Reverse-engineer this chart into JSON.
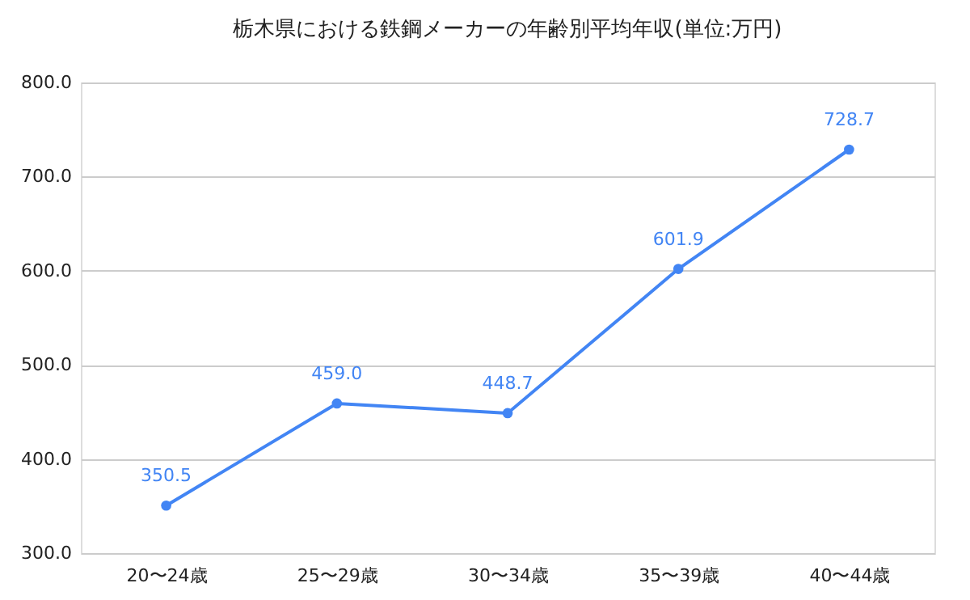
{
  "chart_data": {
    "type": "line",
    "title": "栃木県における鉄鋼メーカーの年齢別平均年収(単位:万円)",
    "categories": [
      "20〜24歳",
      "25〜29歳",
      "30〜34歳",
      "35〜39歳",
      "40〜44歳"
    ],
    "series": [
      {
        "color": "#4285f4",
        "values": [
          350.5,
          459.0,
          448.7,
          601.9,
          728.7
        ],
        "value_labels": [
          "350.5",
          "459.0",
          "448.7",
          "601.9",
          "728.7"
        ]
      }
    ],
    "ylim": [
      300,
      800
    ],
    "yticks": [
      {
        "value": 300,
        "label": "300.0"
      },
      {
        "value": 400,
        "label": "400.0"
      },
      {
        "value": 500,
        "label": "500.0"
      },
      {
        "value": 600,
        "label": "600.0"
      },
      {
        "value": 700,
        "label": "700.0"
      },
      {
        "value": 800,
        "label": "800.0"
      }
    ],
    "grid": "y",
    "marker": "circle",
    "line_style": "solid"
  }
}
